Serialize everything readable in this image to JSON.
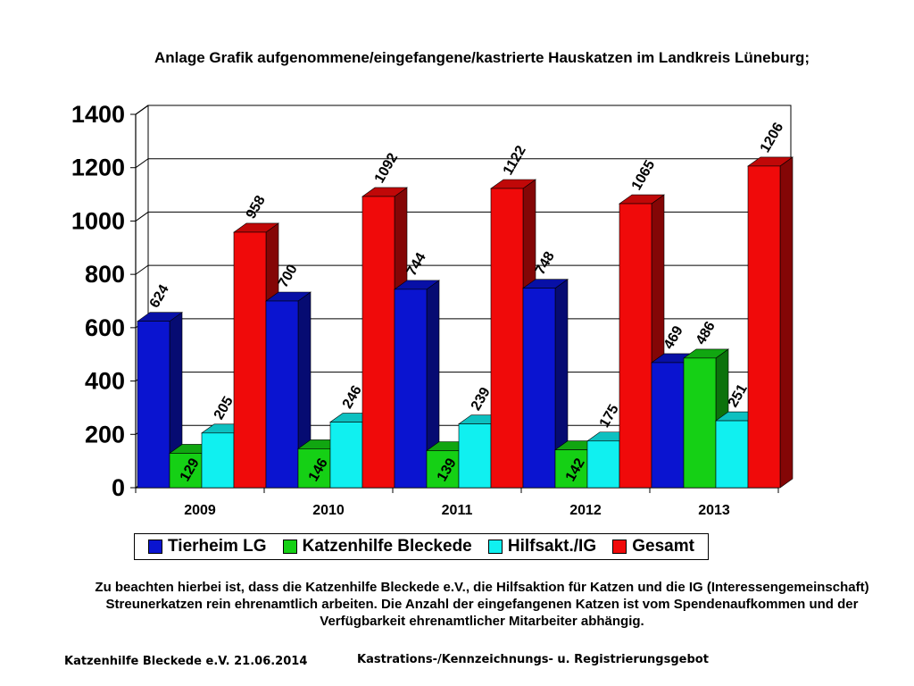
{
  "title": "Anlage Grafik aufgenommene/eingefangene/kastrierte Hauskatzen im Landkreis Lüneburg;",
  "note": "Zu beachten hierbei ist, dass die Katzenhilfe Bleckede e.V., die Hilfsaktion für Katzen und die IG (Interessengemeinschaft) Streunerkatzen  rein ehrenamtlich arbeiten. Die Anzahl der eingefangenen Katzen ist vom Spendenaufkommen und der Verfügbarkeit ehrenamtlicher Mitarbeiter abhängig.",
  "footer": {
    "left": "Katzenhilfe Bleckede e.V.   21.06.2014",
    "right": "Kastrations-/Kennzeichnungs- u. Registrierungsgebot"
  },
  "chart_data": {
    "type": "bar",
    "categories": [
      "2009",
      "2010",
      "2011",
      "2012",
      "2013"
    ],
    "ylim": [
      0,
      1400
    ],
    "yticks": [
      "0",
      "200",
      "400",
      "600",
      "800",
      "1000",
      "1200",
      "1400"
    ],
    "grid": true,
    "legend_position": "bottom",
    "series": [
      {
        "name": "Tierheim LG",
        "values": [
          624,
          700,
          744,
          748,
          469
        ],
        "color": "#0a14d0"
      },
      {
        "name": "Katzenhilfe Bleckede",
        "values": [
          129,
          146,
          139,
          142,
          486
        ],
        "color": "#15d015"
      },
      {
        "name": "Hilfsakt./IG",
        "values": [
          205,
          246,
          239,
          175,
          251
        ],
        "color": "#10f0f0"
      },
      {
        "name": "Gesamt",
        "values": [
          958,
          1092,
          1122,
          1065,
          1206
        ],
        "color": "#f00a0a"
      }
    ]
  }
}
